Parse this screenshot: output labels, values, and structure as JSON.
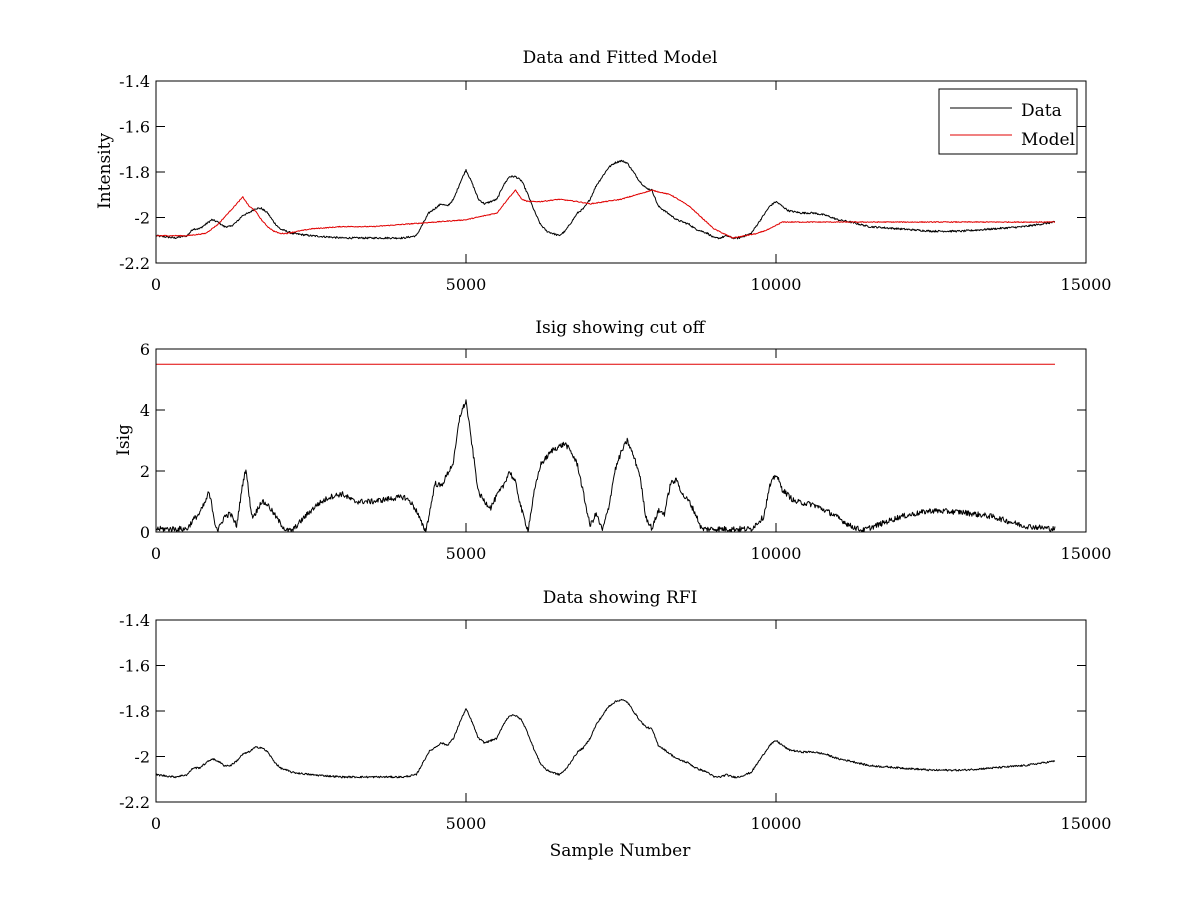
{
  "figure_title": "",
  "colors": {
    "data": "#000000",
    "model": "#e00000",
    "cutoff": "#e00000",
    "axes": "#000000"
  },
  "chart_data": [
    {
      "type": "line",
      "title": "Data and Fitted Model",
      "xlabel": "",
      "ylabel": "Intensity",
      "xlim": [
        0,
        15000
      ],
      "ylim": [
        -2.2,
        -1.4
      ],
      "xticks": [
        0,
        5000,
        10000,
        15000
      ],
      "yticks": [
        -2.2,
        -2,
        -1.8,
        -1.6,
        -1.4
      ],
      "xtick_labels": [
        "0",
        "5000",
        "10000",
        "15000"
      ],
      "ytick_labels": [
        "-2.2",
        "-2",
        "-1.8",
        "-1.6",
        "-1.4"
      ],
      "grid": false,
      "legend": {
        "placement": "top-right",
        "entries": [
          "Data",
          "Model"
        ]
      },
      "series": [
        {
          "name": "Data",
          "color": "#000000",
          "noise": 0.004,
          "x": [
            0,
            300,
            500,
            600,
            700,
            800,
            900,
            1000,
            1100,
            1200,
            1300,
            1400,
            1500,
            1600,
            1700,
            1800,
            1900,
            2000,
            2200,
            2500,
            3000,
            3500,
            4000,
            4200,
            4300,
            4400,
            4500,
            4600,
            4700,
            4800,
            4900,
            5000,
            5100,
            5200,
            5300,
            5400,
            5500,
            5600,
            5700,
            5800,
            5900,
            6000,
            6100,
            6200,
            6300,
            6400,
            6500,
            6600,
            6700,
            6800,
            6900,
            7000,
            7100,
            7200,
            7300,
            7400,
            7500,
            7600,
            7700,
            7800,
            7900,
            8000,
            8100,
            8200,
            8300,
            8400,
            8500,
            8600,
            8700,
            8800,
            8900,
            9000,
            9100,
            9200,
            9300,
            9400,
            9500,
            9600,
            9700,
            9800,
            9900,
            10000,
            10100,
            10200,
            10400,
            10600,
            10800,
            11000,
            11200,
            11500,
            12000,
            12500,
            13000,
            13500,
            14000,
            14500
          ],
          "y": [
            -2.08,
            -2.09,
            -2.08,
            -2.05,
            -2.05,
            -2.03,
            -2.01,
            -2.02,
            -2.04,
            -2.04,
            -2.02,
            -1.99,
            -1.98,
            -1.96,
            -1.96,
            -1.98,
            -2.02,
            -2.05,
            -2.07,
            -2.08,
            -2.09,
            -2.09,
            -2.09,
            -2.08,
            -2.03,
            -1.98,
            -1.96,
            -1.94,
            -1.95,
            -1.92,
            -1.85,
            -1.79,
            -1.85,
            -1.92,
            -1.94,
            -1.93,
            -1.92,
            -1.86,
            -1.82,
            -1.82,
            -1.84,
            -1.9,
            -1.97,
            -2.03,
            -2.06,
            -2.07,
            -2.08,
            -2.06,
            -2.02,
            -1.98,
            -1.96,
            -1.92,
            -1.86,
            -1.82,
            -1.78,
            -1.76,
            -1.75,
            -1.76,
            -1.8,
            -1.84,
            -1.87,
            -1.88,
            -1.95,
            -1.97,
            -1.99,
            -2.01,
            -2.02,
            -2.03,
            -2.05,
            -2.06,
            -2.07,
            -2.09,
            -2.09,
            -2.08,
            -2.09,
            -2.09,
            -2.08,
            -2.07,
            -2.03,
            -1.99,
            -1.95,
            -1.93,
            -1.95,
            -1.97,
            -1.98,
            -1.98,
            -1.99,
            -2.01,
            -2.02,
            -2.04,
            -2.05,
            -2.06,
            -2.06,
            -2.05,
            -2.04,
            -2.02
          ]
        },
        {
          "name": "Model",
          "color": "#e00000",
          "noise": 0.002,
          "x": [
            0,
            500,
            800,
            900,
            1000,
            1100,
            1200,
            1300,
            1400,
            1500,
            1600,
            1700,
            1800,
            1900,
            2000,
            2100,
            2500,
            3000,
            3500,
            4000,
            4500,
            5000,
            5500,
            5700,
            5800,
            5900,
            6000,
            6200,
            6500,
            6800,
            7000,
            7500,
            8000,
            8300,
            8600,
            9000,
            9300,
            9500,
            9700,
            9900,
            10100,
            10300,
            11000,
            12000,
            13000,
            14000,
            14500
          ],
          "y": [
            -2.08,
            -2.08,
            -2.07,
            -2.05,
            -2.03,
            -2.0,
            -1.97,
            -1.94,
            -1.91,
            -1.95,
            -1.97,
            -2.01,
            -2.04,
            -2.06,
            -2.07,
            -2.07,
            -2.05,
            -2.04,
            -2.04,
            -2.03,
            -2.02,
            -2.01,
            -1.98,
            -1.91,
            -1.88,
            -1.92,
            -1.93,
            -1.93,
            -1.92,
            -1.93,
            -1.94,
            -1.92,
            -1.88,
            -1.9,
            -1.95,
            -2.05,
            -2.09,
            -2.08,
            -2.07,
            -2.05,
            -2.02,
            -2.02,
            -2.02,
            -2.02,
            -2.02,
            -2.02,
            -2.02
          ]
        }
      ]
    },
    {
      "type": "line",
      "title": "Isig showing cut off",
      "xlabel": "",
      "ylabel": "Isig",
      "xlim": [
        0,
        15000
      ],
      "ylim": [
        0,
        6
      ],
      "xticks": [
        0,
        5000,
        10000,
        15000
      ],
      "yticks": [
        0,
        2,
        4,
        6
      ],
      "xtick_labels": [
        "0",
        "5000",
        "10000",
        "15000"
      ],
      "ytick_labels": [
        "0",
        "2",
        "4",
        "6"
      ],
      "grid": false,
      "series": [
        {
          "color": "#000000",
          "noise": 0.09,
          "x": [
            0,
            500,
            600,
            700,
            800,
            850,
            900,
            950,
            1000,
            1100,
            1200,
            1300,
            1400,
            1450,
            1500,
            1550,
            1600,
            1700,
            1800,
            1900,
            2000,
            2100,
            2200,
            2400,
            2600,
            2800,
            3000,
            3200,
            3500,
            3800,
            4000,
            4100,
            4200,
            4300,
            4350,
            4400,
            4500,
            4600,
            4700,
            4800,
            4900,
            5000,
            5100,
            5200,
            5300,
            5400,
            5500,
            5600,
            5700,
            5800,
            5900,
            6000,
            6100,
            6200,
            6400,
            6600,
            6700,
            6800,
            6900,
            7000,
            7100,
            7200,
            7300,
            7400,
            7500,
            7600,
            7700,
            7800,
            7900,
            8000,
            8100,
            8200,
            8300,
            8400,
            8500,
            8600,
            8700,
            8800,
            9000,
            9300,
            9600,
            9800,
            9900,
            10000,
            10100,
            10300,
            10600,
            10900,
            11200,
            11400,
            11600,
            12000,
            12500,
            13000,
            13500,
            14000,
            14500
          ],
          "y": [
            0.1,
            0.1,
            0.4,
            0.6,
            1.0,
            1.3,
            0.9,
            0.3,
            0.05,
            0.5,
            0.6,
            0.2,
            1.6,
            2.1,
            1.2,
            0.5,
            0.6,
            1.0,
            0.9,
            0.6,
            0.3,
            0.05,
            0.05,
            0.5,
            0.9,
            1.15,
            1.25,
            1.0,
            1.0,
            1.1,
            1.15,
            1.0,
            0.7,
            0.2,
            0.05,
            0.5,
            1.6,
            1.5,
            1.9,
            2.3,
            3.8,
            4.3,
            2.8,
            1.3,
            1.0,
            0.8,
            1.2,
            1.5,
            2.0,
            1.6,
            0.7,
            0.05,
            1.3,
            2.2,
            2.7,
            2.9,
            2.6,
            2.2,
            1.2,
            0.2,
            0.6,
            0.05,
            0.8,
            2.0,
            2.6,
            3.0,
            2.5,
            1.9,
            0.5,
            0.1,
            0.7,
            0.6,
            1.6,
            1.7,
            1.2,
            1.0,
            0.6,
            0.1,
            0.1,
            0.1,
            0.1,
            0.5,
            1.5,
            1.9,
            1.4,
            1.0,
            0.9,
            0.6,
            0.2,
            0.05,
            0.2,
            0.5,
            0.7,
            0.65,
            0.5,
            0.2,
            0.1
          ]
        },
        {
          "color": "#e00000",
          "noise": 0,
          "x": [
            0,
            14500
          ],
          "y": [
            5.5,
            5.5
          ]
        }
      ]
    },
    {
      "type": "line",
      "title": "Data showing RFI",
      "xlabel": "Sample Number",
      "ylabel": "",
      "xlim": [
        0,
        15000
      ],
      "ylim": [
        -2.2,
        -1.4
      ],
      "xticks": [
        0,
        5000,
        10000,
        15000
      ],
      "yticks": [
        -2.2,
        -2,
        -1.8,
        -1.6,
        -1.4
      ],
      "xtick_labels": [
        "0",
        "5000",
        "10000",
        "15000"
      ],
      "ytick_labels": [
        "-2.2",
        "-2",
        "-1.8",
        "-1.6",
        "-1.4"
      ],
      "grid": false,
      "series": [
        {
          "color": "#000000",
          "noise": 0.004,
          "x": [
            0,
            300,
            500,
            600,
            700,
            800,
            900,
            1000,
            1100,
            1200,
            1300,
            1400,
            1500,
            1600,
            1700,
            1800,
            1900,
            2000,
            2200,
            2500,
            3000,
            3500,
            4000,
            4200,
            4300,
            4400,
            4500,
            4600,
            4700,
            4800,
            4900,
            5000,
            5100,
            5200,
            5300,
            5400,
            5500,
            5600,
            5700,
            5800,
            5900,
            6000,
            6100,
            6200,
            6300,
            6400,
            6500,
            6600,
            6700,
            6800,
            6900,
            7000,
            7100,
            7200,
            7300,
            7400,
            7500,
            7600,
            7700,
            7800,
            7900,
            8000,
            8100,
            8200,
            8300,
            8400,
            8500,
            8600,
            8700,
            8800,
            8900,
            9000,
            9100,
            9200,
            9300,
            9400,
            9500,
            9600,
            9700,
            9800,
            9900,
            10000,
            10100,
            10200,
            10400,
            10600,
            10800,
            11000,
            11200,
            11500,
            12000,
            12500,
            13000,
            13500,
            14000,
            14500
          ],
          "y": [
            -2.08,
            -2.09,
            -2.08,
            -2.05,
            -2.05,
            -2.03,
            -2.01,
            -2.02,
            -2.04,
            -2.04,
            -2.02,
            -1.99,
            -1.98,
            -1.96,
            -1.96,
            -1.98,
            -2.02,
            -2.05,
            -2.07,
            -2.08,
            -2.09,
            -2.09,
            -2.09,
            -2.08,
            -2.03,
            -1.98,
            -1.96,
            -1.94,
            -1.95,
            -1.92,
            -1.85,
            -1.79,
            -1.85,
            -1.92,
            -1.94,
            -1.93,
            -1.92,
            -1.86,
            -1.82,
            -1.82,
            -1.84,
            -1.9,
            -1.97,
            -2.03,
            -2.06,
            -2.07,
            -2.08,
            -2.06,
            -2.02,
            -1.98,
            -1.96,
            -1.92,
            -1.86,
            -1.82,
            -1.78,
            -1.76,
            -1.75,
            -1.76,
            -1.8,
            -1.84,
            -1.87,
            -1.88,
            -1.95,
            -1.97,
            -1.99,
            -2.01,
            -2.02,
            -2.03,
            -2.05,
            -2.06,
            -2.07,
            -2.09,
            -2.09,
            -2.08,
            -2.09,
            -2.09,
            -2.08,
            -2.07,
            -2.03,
            -1.99,
            -1.95,
            -1.93,
            -1.95,
            -1.97,
            -1.98,
            -1.98,
            -1.99,
            -2.01,
            -2.02,
            -2.04,
            -2.05,
            -2.06,
            -2.06,
            -2.05,
            -2.04,
            -2.02
          ]
        }
      ]
    }
  ]
}
